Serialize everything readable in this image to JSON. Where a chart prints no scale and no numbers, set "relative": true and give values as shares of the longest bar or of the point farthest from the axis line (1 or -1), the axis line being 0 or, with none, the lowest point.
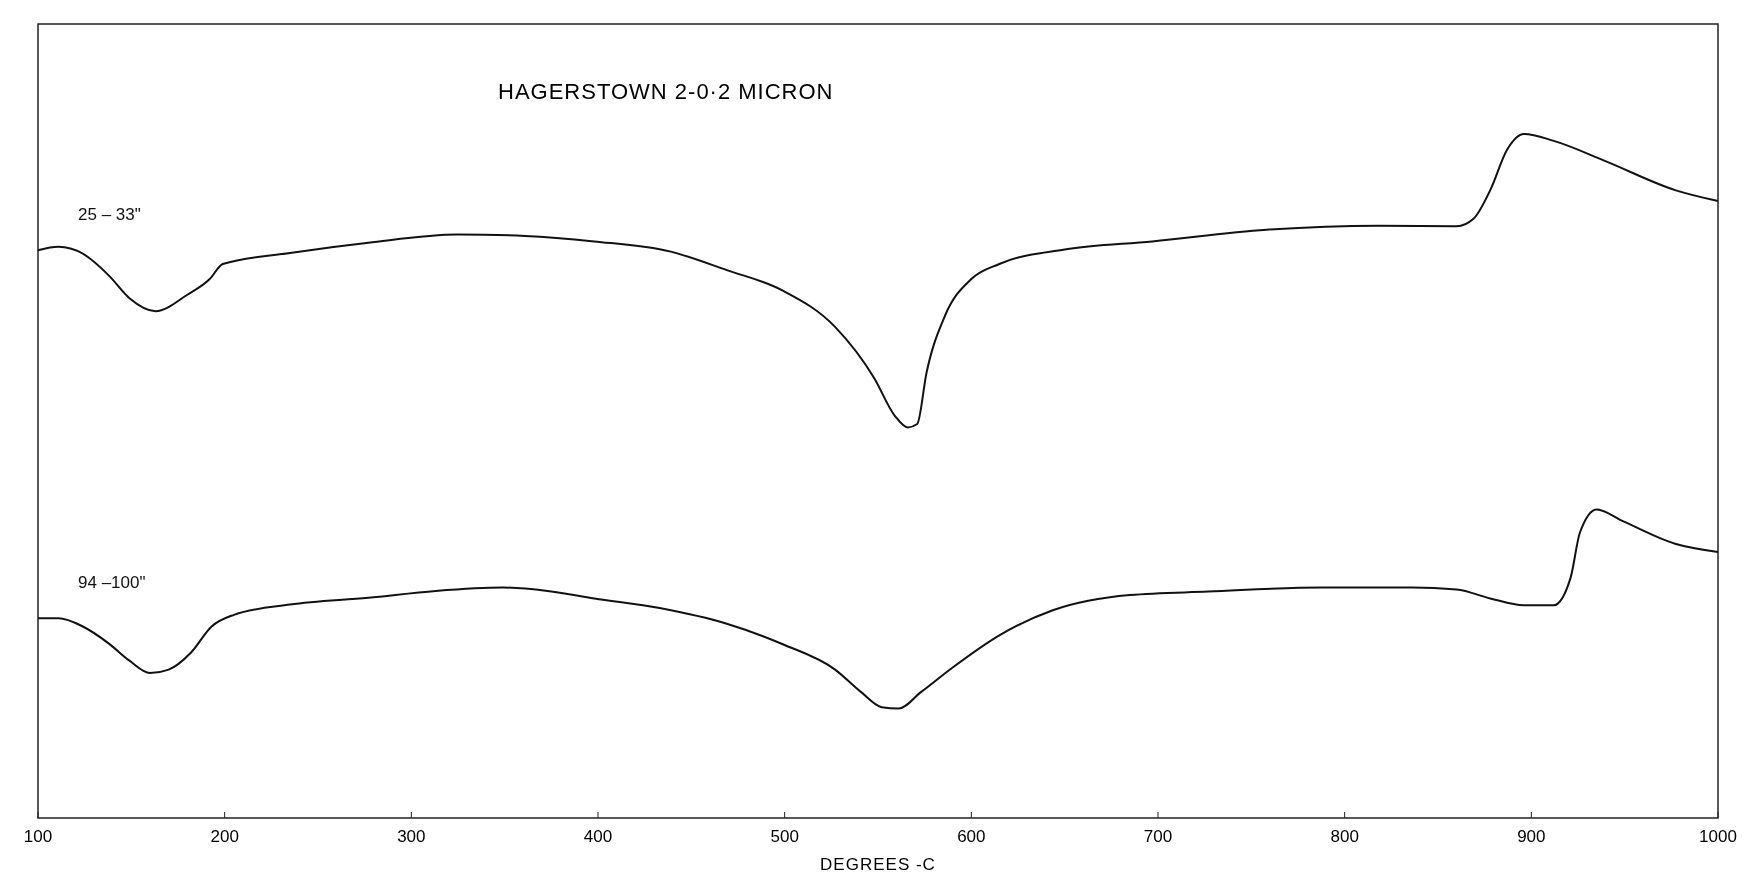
{
  "chart_data": {
    "type": "line",
    "title": "HAGERSTOWN  2-0·2  MICRON",
    "xlabel": "DEGREES  -C",
    "relative": true,
    "xlim": [
      100,
      1000
    ],
    "xticks": [
      100,
      200,
      300,
      400,
      500,
      600,
      700,
      800,
      900,
      1000
    ],
    "grid": false,
    "legend": false,
    "series": [
      {
        "name": "25 – 33\"",
        "color": "#111111",
        "x": [
          100,
          111,
          124,
          138,
          149,
          163,
          180,
          192,
          199,
          235,
          277,
          325,
          361,
          398,
          439,
          469,
          499,
          527,
          548,
          559,
          566,
          571,
          576,
          586,
          600,
          615,
          650,
          697,
          758,
          818,
          860,
          869,
          878,
          887,
          896,
          912,
          940,
          977,
          1000
        ],
        "values": [
          0.83,
          0.835,
          0.825,
          0.793,
          0.76,
          0.741,
          0.765,
          0.788,
          0.81,
          0.826,
          0.841,
          0.853,
          0.851,
          0.843,
          0.828,
          0.801,
          0.771,
          0.718,
          0.643,
          0.588,
          0.571,
          0.576,
          0.651,
          0.735,
          0.788,
          0.81,
          0.831,
          0.843,
          0.86,
          0.866,
          0.865,
          0.876,
          0.918,
          0.977,
          1.0,
          0.99,
          0.96,
          0.918,
          0.902
        ]
      },
      {
        "name": "94 –100\"",
        "color": "#111111",
        "x": [
          100,
          111,
          124,
          138,
          149,
          160,
          170,
          182,
          193,
          205,
          235,
          277,
          313,
          349,
          373,
          398,
          433,
          469,
          499,
          527,
          541,
          552,
          561,
          573,
          590,
          615,
          644,
          685,
          727,
          788,
          836,
          860,
          878,
          896,
          912,
          921,
          926,
          935,
          949,
          977,
          1000
        ],
        "values": [
          0.292,
          0.292,
          0.28,
          0.255,
          0.23,
          0.212,
          0.217,
          0.242,
          0.28,
          0.297,
          0.312,
          0.322,
          0.332,
          0.337,
          0.332,
          0.321,
          0.307,
          0.284,
          0.254,
          0.217,
          0.184,
          0.162,
          0.16,
          0.184,
          0.22,
          0.267,
          0.304,
          0.326,
          0.331,
          0.337,
          0.337,
          0.334,
          0.321,
          0.311,
          0.311,
          0.351,
          0.417,
          0.451,
          0.434,
          0.401,
          0.389
        ]
      }
    ]
  }
}
